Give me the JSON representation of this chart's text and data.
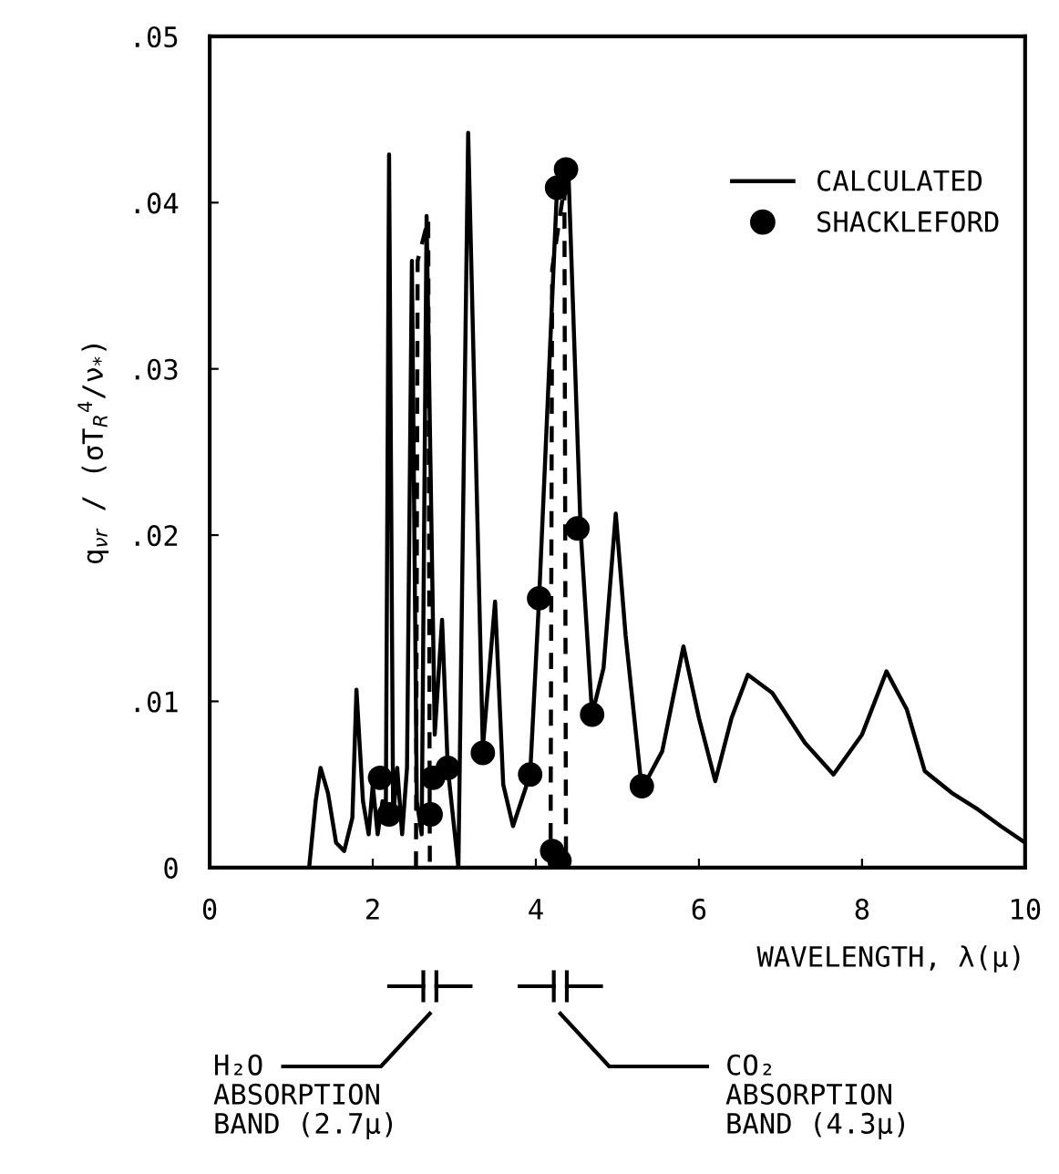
{
  "chart_data": {
    "type": "line",
    "xlabel": "WAVELENGTH, λ(μ)",
    "ylabel": "q$_{νr}$ / (σT$_{R}$$^{4}$/ν$_{*}$)",
    "xlim": [
      0,
      10
    ],
    "ylim": [
      0,
      0.05
    ],
    "xticks": [
      0,
      2,
      4,
      6,
      8,
      10
    ],
    "yticks": [
      0,
      {
        "value": 0.01,
        "label": ".01"
      },
      {
        "value": 0.02,
        "label": ".02"
      },
      {
        "value": 0.03,
        "label": ".03"
      },
      {
        "value": 0.04,
        "label": ".04"
      },
      {
        "value": 0.05,
        "label": ".05"
      }
    ],
    "series": [
      {
        "name": "CALCULATED",
        "color": "#000000",
        "line_style": "solid",
        "marker": "none",
        "x": [
          1.22,
          1.3,
          1.36,
          1.45,
          1.55,
          1.65,
          1.75,
          1.8,
          1.88,
          1.95,
          2.0,
          2.06,
          2.12,
          2.16,
          2.2,
          2.25,
          2.3,
          2.36,
          2.42,
          2.48,
          2.54,
          2.6,
          2.66,
          2.76,
          2.85,
          2.92,
          3.05,
          3.17,
          3.35,
          3.5,
          3.6,
          3.72,
          3.93,
          4.04,
          4.26,
          4.4,
          4.55,
          4.69,
          4.83,
          4.98,
          5.1,
          5.3,
          5.55,
          5.81,
          6.0,
          6.2,
          6.4,
          6.6,
          6.9,
          7.3,
          7.65,
          8.0,
          8.3,
          8.55,
          8.77,
          9.1,
          9.42,
          9.7,
          10.0
        ],
        "values": [
          0.0,
          0.004,
          0.006,
          0.0045,
          0.0015,
          0.001,
          0.003,
          0.0107,
          0.004,
          0.002,
          0.005,
          0.002,
          0.004,
          0.003,
          0.0429,
          0.003,
          0.006,
          0.002,
          0.006,
          0.0365,
          0.004,
          0.002,
          0.0392,
          0.008,
          0.0149,
          0.006,
          0.0,
          0.0442,
          0.0072,
          0.016,
          0.005,
          0.0025,
          0.0056,
          0.0162,
          0.0409,
          0.0418,
          0.0202,
          0.0092,
          0.012,
          0.0213,
          0.014,
          0.0047,
          0.007,
          0.0133,
          0.009,
          0.0052,
          0.009,
          0.0116,
          0.0105,
          0.0075,
          0.0056,
          0.008,
          0.0118,
          0.0095,
          0.0058,
          0.0045,
          0.0035,
          0.0025,
          0.0015
        ]
      },
      {
        "name": "SHACKLEFORD",
        "type": "scatter",
        "color": "#000000",
        "marker": "circle",
        "x": [
          2.09,
          2.2,
          2.71,
          2.74,
          2.92,
          3.35,
          3.93,
          4.04,
          4.2,
          4.26,
          4.29,
          4.37,
          4.51,
          4.69,
          5.3
        ],
        "values": [
          0.0054,
          0.0032,
          0.0032,
          0.0054,
          0.006,
          0.0069,
          0.0056,
          0.0162,
          0.001,
          0.0409,
          0.0004,
          0.042,
          0.0204,
          0.0092,
          0.0049
        ]
      },
      {
        "color": "#000000",
        "line_style": "dashed",
        "marker": "none",
        "x": [
          2.53,
          2.55,
          2.68,
          2.7
        ],
        "values": [
          0.0,
          0.0365,
          0.039,
          0.0
        ]
      },
      {
        "color": "#000000",
        "line_style": "dashed",
        "marker": "none",
        "x": [
          4.18,
          4.2,
          4.35,
          4.37
        ],
        "values": [
          0.0,
          0.036,
          0.041,
          0.0
        ]
      }
    ],
    "legend": "top right",
    "grid": false,
    "annotations": [
      "H₂O\nABSORPTION\nBAND (2.7μ)",
      "CO₂\nABSORPTION\nBAND (4.3μ)"
    ]
  }
}
